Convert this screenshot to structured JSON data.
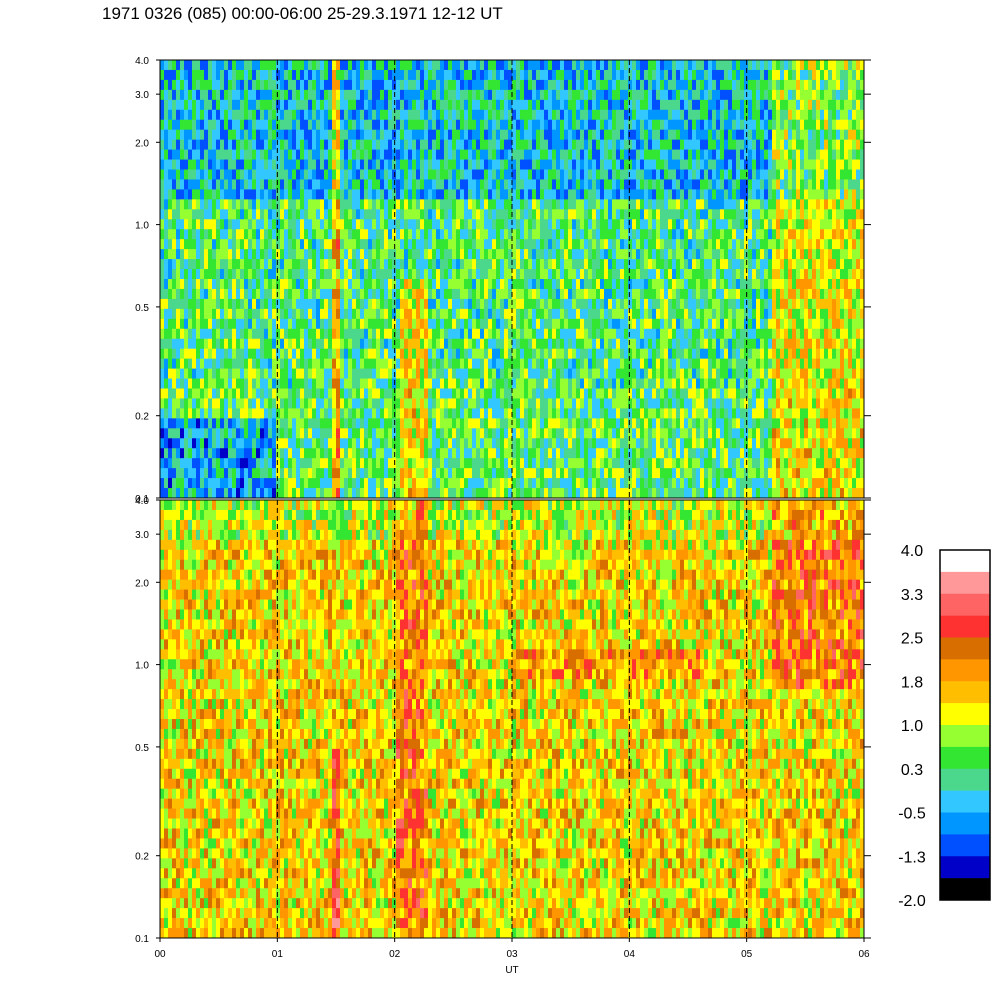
{
  "title": "1971 0326 (085) 00:00-06:00 25-29.3.1971  12-12 UT",
  "chart_data": {
    "type": "heatmap",
    "xlabel": "UT",
    "x_ticks": [
      "00",
      "01",
      "02",
      "03",
      "04",
      "05",
      "06"
    ],
    "x_range": [
      0,
      6
    ],
    "y_scale": "log",
    "panels": [
      {
        "name": "upper",
        "y_range": [
          0.1,
          4.0
        ],
        "y_ticks": [
          {
            "value": 0.1,
            "label": "0.1"
          },
          {
            "value": 0.2,
            "label": "0.2"
          },
          {
            "value": 0.5,
            "label": "0.5"
          },
          {
            "value": 1.0,
            "label": "1.0"
          },
          {
            "value": 2.0,
            "label": "2.0"
          },
          {
            "value": 3.0,
            "label": "3.0"
          },
          {
            "value": 4.0,
            "label": "4.0"
          }
        ],
        "dominant_level": 0.3
      },
      {
        "name": "lower",
        "y_range": [
          0.1,
          4.0
        ],
        "y_ticks": [
          {
            "value": 0.1,
            "label": "0.1"
          },
          {
            "value": 0.2,
            "label": "0.2"
          },
          {
            "value": 0.5,
            "label": "0.5"
          },
          {
            "value": 1.0,
            "label": "1.0"
          },
          {
            "value": 2.0,
            "label": "2.0"
          },
          {
            "value": 3.0,
            "label": "3.0"
          },
          {
            "value": 4.0,
            "label": "4.0"
          }
        ],
        "dominant_level": 1.4
      }
    ],
    "hour_gridlines": [
      1,
      2,
      3,
      4,
      5
    ],
    "colorbar": {
      "range": [
        -2.0,
        4.0
      ],
      "labels": [
        "4.0",
        "3.3",
        "2.5",
        "1.8",
        "1.0",
        "0.3",
        "-0.5",
        "-1.3",
        "-2.0"
      ],
      "colors": [
        "#ffffff",
        "#ff9898",
        "#ff6464",
        "#ff3232",
        "#d86e00",
        "#ff9600",
        "#ffbe00",
        "#ffff00",
        "#96ff32",
        "#32e632",
        "#4bd78c",
        "#32c8ff",
        "#0096ff",
        "#0050ff",
        "#0000c8",
        "#000000"
      ]
    }
  }
}
